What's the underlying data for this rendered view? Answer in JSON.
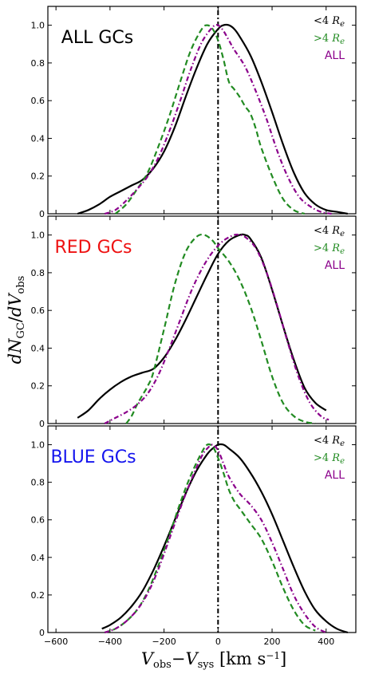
{
  "chart_data": {
    "type": "line",
    "xlabel": "V_obs − V_sys [km s⁻¹]",
    "ylabel": "dN_GC / dV_obs",
    "xlim": [
      -630,
      510
    ],
    "ylim": [
      0,
      1.1
    ],
    "x_ticks": [
      -600,
      -400,
      -200,
      0,
      200,
      400
    ],
    "y_ticks": [
      0,
      0.2,
      0.4,
      0.6,
      0.8,
      1.0
    ],
    "x_tick_labels": [
      "−600",
      "−400",
      "−200",
      "0",
      "200",
      "400"
    ],
    "y_tick_labels": [
      "0",
      "0.2",
      "0.4",
      "0.6",
      "0.8",
      "1.0"
    ],
    "vertical_reference_line": 0,
    "legend": {
      "position": "top-right",
      "entries": [
        {
          "label": "<4 Re",
          "color": "#000000"
        },
        {
          "label": ">4 Re",
          "color": "#228B22"
        },
        {
          "label": "ALL",
          "color": "#8B008B"
        }
      ]
    },
    "panels": [
      {
        "title": "ALL GCs",
        "title_color": "#000000",
        "series": [
          {
            "name": "<4 Re",
            "color": "#000000",
            "style": "solid",
            "x": [
              -520,
              -480,
              -440,
              -400,
              -360,
              -320,
              -280,
              -240,
              -200,
              -160,
              -120,
              -80,
              -40,
              0,
              20,
              40,
              60,
              80,
              120,
              160,
              200,
              240,
              280,
              320,
              360,
              400,
              440,
              480
            ],
            "y": [
              0.0,
              0.02,
              0.05,
              0.09,
              0.12,
              0.15,
              0.18,
              0.24,
              0.33,
              0.46,
              0.62,
              0.77,
              0.9,
              0.98,
              1.0,
              1.0,
              0.98,
              0.94,
              0.84,
              0.7,
              0.54,
              0.37,
              0.22,
              0.11,
              0.05,
              0.02,
              0.01,
              0.0
            ]
          },
          {
            "name": ">4 Re",
            "color": "#228B22",
            "style": "dashed",
            "x": [
              -380,
              -340,
              -300,
              -260,
              -220,
              -180,
              -140,
              -100,
              -60,
              -40,
              -20,
              0,
              20,
              40,
              60,
              80,
              100,
              120,
              140,
              160,
              200,
              240,
              280,
              320
            ],
            "y": [
              0.0,
              0.05,
              0.13,
              0.22,
              0.36,
              0.52,
              0.7,
              0.87,
              0.98,
              1.0,
              0.98,
              0.92,
              0.82,
              0.7,
              0.66,
              0.62,
              0.57,
              0.53,
              0.45,
              0.35,
              0.2,
              0.08,
              0.02,
              0.0
            ]
          },
          {
            "name": "ALL",
            "color": "#8B008B",
            "style": "dashdot",
            "x": [
              -420,
              -380,
              -340,
              -300,
              -260,
              -220,
              -180,
              -140,
              -100,
              -60,
              -20,
              0,
              20,
              40,
              60,
              100,
              140,
              180,
              220,
              260,
              300,
              340,
              380,
              420
            ],
            "y": [
              0.0,
              0.02,
              0.07,
              0.13,
              0.2,
              0.3,
              0.44,
              0.6,
              0.77,
              0.91,
              0.99,
              1.0,
              0.97,
              0.92,
              0.87,
              0.78,
              0.65,
              0.5,
              0.33,
              0.19,
              0.09,
              0.04,
              0.01,
              0.0
            ]
          }
        ]
      },
      {
        "title": "RED GCs",
        "title_color": "#ee1111",
        "series": [
          {
            "name": "<4 Re",
            "color": "#000000",
            "style": "solid",
            "x": [
              -520,
              -480,
              -440,
              -400,
              -360,
              -320,
              -280,
              -240,
              -200,
              -160,
              -120,
              -80,
              -40,
              0,
              40,
              80,
              100,
              120,
              160,
              200,
              240,
              280,
              320,
              360,
              400
            ],
            "y": [
              0.03,
              0.07,
              0.13,
              0.18,
              0.22,
              0.25,
              0.27,
              0.29,
              0.35,
              0.44,
              0.55,
              0.67,
              0.79,
              0.9,
              0.97,
              1.0,
              1.0,
              0.98,
              0.88,
              0.71,
              0.52,
              0.34,
              0.19,
              0.11,
              0.07
            ]
          },
          {
            "name": ">4 Re",
            "color": "#228B22",
            "style": "dashed",
            "x": [
              -340,
              -320,
              -300,
              -280,
              -260,
              -240,
              -200,
              -160,
              -120,
              -80,
              -50,
              -20,
              0,
              40,
              80,
              120,
              160,
              200,
              240,
              280,
              320,
              360
            ],
            "y": [
              0.0,
              0.04,
              0.1,
              0.15,
              0.2,
              0.27,
              0.5,
              0.74,
              0.91,
              0.99,
              1.0,
              0.97,
              0.93,
              0.86,
              0.76,
              0.62,
              0.44,
              0.25,
              0.11,
              0.04,
              0.01,
              0.0
            ]
          },
          {
            "name": "ALL",
            "color": "#8B008B",
            "style": "dashdot",
            "x": [
              -420,
              -380,
              -340,
              -300,
              -260,
              -220,
              -180,
              -140,
              -100,
              -60,
              -20,
              20,
              60,
              80,
              100,
              140,
              180,
              220,
              260,
              300,
              340,
              380,
              410
            ],
            "y": [
              0.0,
              0.03,
              0.06,
              0.1,
              0.16,
              0.26,
              0.4,
              0.55,
              0.7,
              0.82,
              0.91,
              0.97,
              1.0,
              1.0,
              0.99,
              0.93,
              0.8,
              0.62,
              0.42,
              0.24,
              0.11,
              0.04,
              0.02
            ]
          }
        ]
      },
      {
        "title": "BLUE GCs",
        "title_color": "#1515ee",
        "series": [
          {
            "name": "<4 Re",
            "color": "#000000",
            "style": "solid",
            "x": [
              -430,
              -400,
              -360,
              -320,
              -280,
              -240,
              -200,
              -160,
              -120,
              -80,
              -40,
              -20,
              0,
              20,
              40,
              80,
              120,
              160,
              200,
              240,
              280,
              320,
              360,
              400,
              440,
              480
            ],
            "y": [
              0.02,
              0.04,
              0.08,
              0.14,
              0.22,
              0.33,
              0.46,
              0.6,
              0.74,
              0.86,
              0.95,
              0.98,
              1.0,
              1.0,
              0.98,
              0.93,
              0.85,
              0.75,
              0.63,
              0.49,
              0.35,
              0.22,
              0.12,
              0.06,
              0.02,
              0.0
            ]
          },
          {
            "name": ">4 Re",
            "color": "#228B22",
            "style": "dashed",
            "x": [
              -420,
              -380,
              -340,
              -300,
              -260,
              -220,
              -180,
              -140,
              -100,
              -60,
              -40,
              -20,
              0,
              20,
              40,
              60,
              80,
              100,
              120,
              160,
              200,
              240,
              280,
              320,
              360
            ],
            "y": [
              0.0,
              0.02,
              0.06,
              0.12,
              0.22,
              0.36,
              0.52,
              0.69,
              0.84,
              0.96,
              1.0,
              0.99,
              0.93,
              0.85,
              0.76,
              0.7,
              0.66,
              0.62,
              0.58,
              0.5,
              0.38,
              0.24,
              0.12,
              0.04,
              0.01
            ]
          },
          {
            "name": "ALL",
            "color": "#8B008B",
            "style": "dashdot",
            "x": [
              -420,
              -380,
              -340,
              -300,
              -260,
              -220,
              -180,
              -140,
              -100,
              -60,
              -40,
              -20,
              0,
              20,
              40,
              80,
              120,
              160,
              200,
              240,
              280,
              320,
              360,
              400
            ],
            "y": [
              0.0,
              0.02,
              0.06,
              0.12,
              0.21,
              0.34,
              0.5,
              0.66,
              0.81,
              0.94,
              0.98,
              1.0,
              0.97,
              0.9,
              0.83,
              0.74,
              0.68,
              0.6,
              0.48,
              0.34,
              0.2,
              0.1,
              0.03,
              0.0
            ]
          }
        ]
      }
    ]
  }
}
